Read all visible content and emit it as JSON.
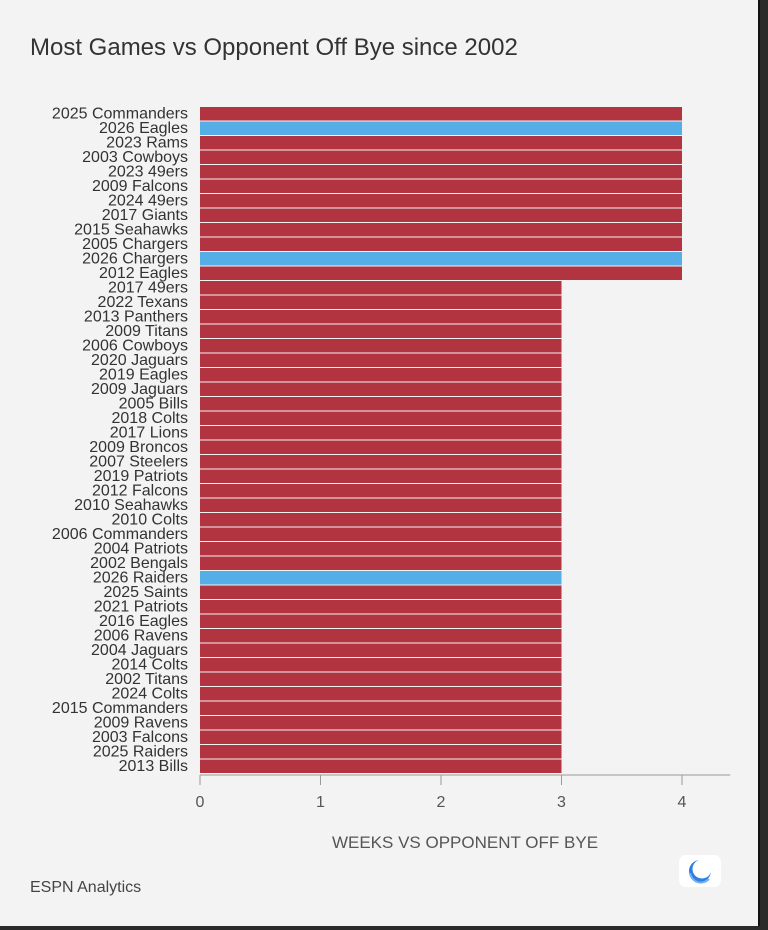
{
  "title": "Most Games vs Opponent Off Bye since 2002",
  "source": "ESPN Analytics",
  "logo_icon": "espn-analytics-logo-icon",
  "colors": {
    "default_bar": "#b13440",
    "highlight_bar": "#55aee6",
    "background": "#f3f3f3",
    "axis": "#999999",
    "text": "#444444"
  },
  "chart_data": {
    "type": "bar",
    "orientation": "horizontal",
    "title": "Most Games vs Opponent Off Bye since 2002",
    "xlabel": "WEEKS VS OPPONENT OFF BYE",
    "ylabel": "",
    "xlim": [
      0,
      4.4
    ],
    "xticks": [
      0,
      1,
      2,
      3,
      4
    ],
    "grid": false,
    "categories": [
      "2025 Commanders",
      "2026 Eagles",
      "2023 Rams",
      "2003 Cowboys",
      "2023 49ers",
      "2009 Falcons",
      "2024 49ers",
      "2017 Giants",
      "2015 Seahawks",
      "2005 Chargers",
      "2026 Chargers",
      "2012 Eagles",
      "2017 49ers",
      "2022 Texans",
      "2013 Panthers",
      "2009 Titans",
      "2006 Cowboys",
      "2020 Jaguars",
      "2019 Eagles",
      "2009 Jaguars",
      "2005 Bills",
      "2018 Colts",
      "2017 Lions",
      "2009 Broncos",
      "2007 Steelers",
      "2019 Patriots",
      "2012 Falcons",
      "2010 Seahawks",
      "2010 Colts",
      "2006 Commanders",
      "2004 Patriots",
      "2002 Bengals",
      "2026 Raiders",
      "2025 Saints",
      "2021 Patriots",
      "2016 Eagles",
      "2006 Ravens",
      "2004 Jaguars",
      "2014 Colts",
      "2002 Titans",
      "2024 Colts",
      "2015 Commanders",
      "2009 Ravens",
      "2003 Falcons",
      "2025 Raiders",
      "2013 Bills"
    ],
    "values": [
      4,
      4,
      4,
      4,
      4,
      4,
      4,
      4,
      4,
      4,
      4,
      4,
      3,
      3,
      3,
      3,
      3,
      3,
      3,
      3,
      3,
      3,
      3,
      3,
      3,
      3,
      3,
      3,
      3,
      3,
      3,
      3,
      3,
      3,
      3,
      3,
      3,
      3,
      3,
      3,
      3,
      3,
      3,
      3,
      3,
      3
    ],
    "highlighted": [
      "2026 Eagles",
      "2026 Chargers",
      "2026 Raiders"
    ]
  }
}
